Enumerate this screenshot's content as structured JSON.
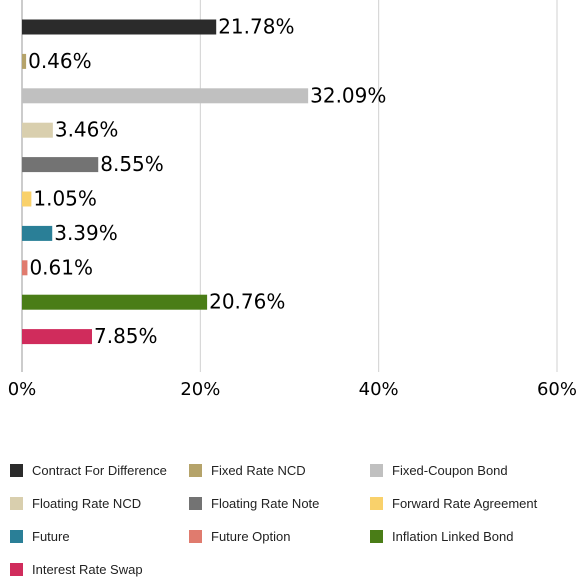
{
  "chart_data": {
    "type": "bar",
    "orientation": "horizontal",
    "categories": [
      "Contract For Difference",
      "Fixed Rate NCD",
      "Fixed-Coupon Bond",
      "Floating Rate NCD",
      "Floating Rate Note",
      "Forward Rate Agreement",
      "Future",
      "Future Option",
      "Inflation Linked Bond",
      "Interest Rate Swap"
    ],
    "values": [
      21.78,
      0.46,
      32.09,
      3.46,
      8.55,
      1.05,
      3.39,
      0.61,
      20.76,
      7.85
    ],
    "value_labels": [
      "21.78%",
      "0.46%",
      "32.09%",
      "3.46%",
      "8.55%",
      "1.05%",
      "3.39%",
      "0.61%",
      "20.76%",
      "7.85%"
    ],
    "colors": [
      "#2b2b2b",
      "#b5a36a",
      "#c0c0c0",
      "#d9cfae",
      "#737373",
      "#f9d16b",
      "#2a7f97",
      "#e07b6e",
      "#4a7d17",
      "#d02c5c"
    ],
    "xlim": [
      0,
      60
    ],
    "xticks": [
      {
        "value": 0,
        "label": "0%"
      },
      {
        "value": 20,
        "label": "20%"
      },
      {
        "value": 40,
        "label": "40%"
      },
      {
        "value": 60,
        "label": "60%"
      }
    ],
    "grid": true
  }
}
